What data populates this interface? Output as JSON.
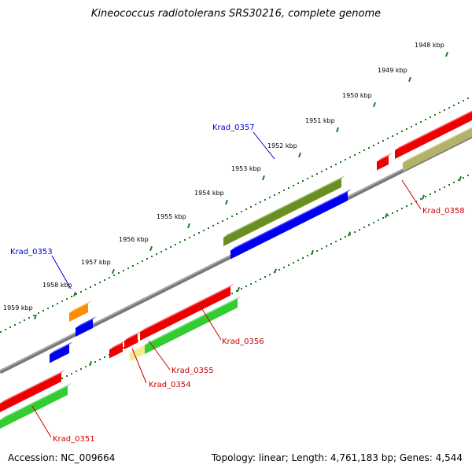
{
  "header": {
    "title": "Kineococcus radiotolerans SRS30216, complete genome"
  },
  "footer": {
    "accession": "Accession: NC_009664",
    "summary": "Topology: linear; Length: 4,761,183 bp; Genes: 4,544"
  },
  "scale": {
    "ticks": [
      {
        "label": "1948 kbp"
      },
      {
        "label": "1949 kbp"
      },
      {
        "label": "1950 kbp"
      },
      {
        "label": "1951 kbp"
      },
      {
        "label": "1952 kbp"
      },
      {
        "label": "1953 kbp"
      },
      {
        "label": "1954 kbp"
      },
      {
        "label": "1955 kbp"
      },
      {
        "label": "1956 kbp"
      },
      {
        "label": "1957 kbp"
      },
      {
        "label": "1958 kbp"
      },
      {
        "label": "1959 kbp"
      }
    ]
  },
  "gene_labels": [
    {
      "name": "Krad_0357",
      "color": "#0000cc"
    },
    {
      "name": "Krad_0353",
      "color": "#0000cc"
    },
    {
      "name": "Krad_0358",
      "color": "#cc0000"
    },
    {
      "name": "Krad_0356",
      "color": "#cc0000"
    },
    {
      "name": "Krad_0355",
      "color": "#cc0000"
    },
    {
      "name": "Krad_0354",
      "color": "#cc0000"
    },
    {
      "name": "Krad_0351",
      "color": "#cc0000"
    }
  ],
  "colors": {
    "olive": "#6b8e23",
    "blue": "#0000ee",
    "red": "#ee0000",
    "green": "#33cc33",
    "khaki": "#b5b06a",
    "orange": "#ff8c00",
    "pale_yellow": "#f2ec9a",
    "axis_grey": "#888888",
    "tick_green": "#1e7a1e"
  }
}
